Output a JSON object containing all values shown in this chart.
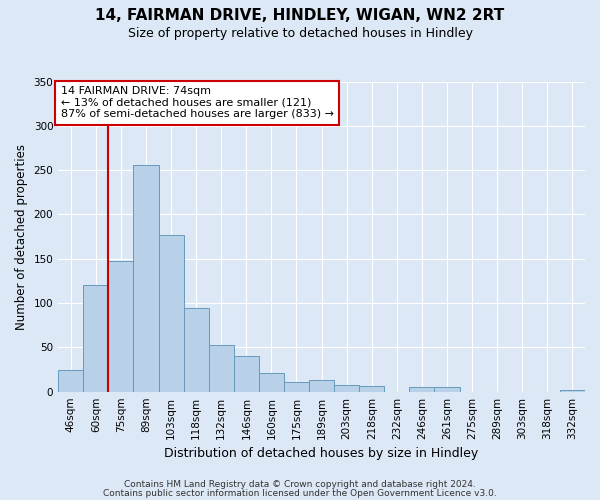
{
  "title": "14, FAIRMAN DRIVE, HINDLEY, WIGAN, WN2 2RT",
  "subtitle": "Size of property relative to detached houses in Hindley",
  "xlabel": "Distribution of detached houses by size in Hindley",
  "ylabel": "Number of detached properties",
  "bar_labels": [
    "46sqm",
    "60sqm",
    "75sqm",
    "89sqm",
    "103sqm",
    "118sqm",
    "132sqm",
    "146sqm",
    "160sqm",
    "175sqm",
    "189sqm",
    "203sqm",
    "218sqm",
    "232sqm",
    "246sqm",
    "261sqm",
    "275sqm",
    "289sqm",
    "303sqm",
    "318sqm",
    "332sqm"
  ],
  "bar_values": [
    24,
    120,
    148,
    256,
    177,
    94,
    53,
    40,
    21,
    11,
    13,
    7,
    6,
    0,
    5,
    5,
    0,
    0,
    0,
    0,
    2
  ],
  "bar_color": "#b8d0e8",
  "bar_edge_color": "#6699bb",
  "ylim": [
    0,
    350
  ],
  "yticks": [
    0,
    50,
    100,
    150,
    200,
    250,
    300,
    350
  ],
  "annotation_title": "14 FAIRMAN DRIVE: 74sqm",
  "annotation_line1": "← 13% of detached houses are smaller (121)",
  "annotation_line2": "87% of semi-detached houses are larger (833) →",
  "annotation_box_color": "#ffffff",
  "annotation_box_edge_color": "#cc0000",
  "vline_color": "#cc0000",
  "background_color": "#dce8f5",
  "grid_color": "#ffffff",
  "footer1": "Contains HM Land Registry data © Crown copyright and database right 2024.",
  "footer2": "Contains public sector information licensed under the Open Government Licence v3.0.",
  "title_fontsize": 11,
  "subtitle_fontsize": 9,
  "xlabel_fontsize": 9,
  "ylabel_fontsize": 8.5,
  "tick_fontsize": 7.5,
  "annotation_fontsize": 8,
  "footer_fontsize": 6.5
}
